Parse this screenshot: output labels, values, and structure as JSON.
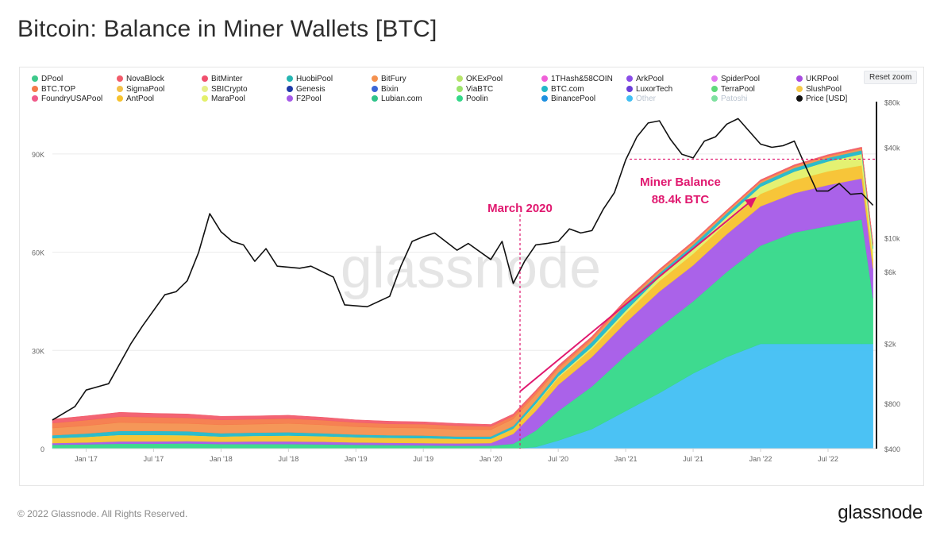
{
  "page": {
    "title": "Bitcoin: Balance in Miner Wallets [BTC]",
    "footer_copyright": "© 2022 Glassnode. All Rights Reserved.",
    "footer_logo": "glassnode",
    "watermark": "glassnode",
    "reset_zoom_label": "Reset zoom"
  },
  "legend": [
    {
      "label": "DPool",
      "color": "#3ec98b"
    },
    {
      "label": "NovaBlock",
      "color": "#f25c6b"
    },
    {
      "label": "BitMinter",
      "color": "#f0506e"
    },
    {
      "label": "HuobiPool",
      "color": "#26b5b2"
    },
    {
      "label": "BitFury",
      "color": "#f4914f"
    },
    {
      "label": "OKExPool",
      "color": "#b6e46a"
    },
    {
      "label": "1THash&58COIN",
      "color": "#f060d8"
    },
    {
      "label": "ArkPool",
      "color": "#8a4de8"
    },
    {
      "label": "SpiderPool",
      "color": "#e27af0"
    },
    {
      "label": "UKRPool",
      "color": "#a84be0"
    },
    {
      "label": "BTC.TOP",
      "color": "#f57a4a"
    },
    {
      "label": "SigmaPool",
      "color": "#f2c14a"
    },
    {
      "label": "SBICrypto",
      "color": "#e6ef8a"
    },
    {
      "label": "Genesis",
      "color": "#1f3aa8"
    },
    {
      "label": "Bixin",
      "color": "#3b66d6"
    },
    {
      "label": "ViaBTC",
      "color": "#9be36d"
    },
    {
      "label": "BTC.com",
      "color": "#22b8c8"
    },
    {
      "label": "LuxorTech",
      "color": "#6a3fd8"
    },
    {
      "label": "TerraPool",
      "color": "#5fd97a"
    },
    {
      "label": "SlushPool",
      "color": "#f6c94a"
    },
    {
      "label": "FoundryUSAPool",
      "color": "#f05a8a"
    },
    {
      "label": "AntPool",
      "color": "#f7c22e"
    },
    {
      "label": "MaraPool",
      "color": "#e3f06a"
    },
    {
      "label": "F2Pool",
      "color": "#a55ae8"
    },
    {
      "label": "Lubian.com",
      "color": "#2fc38a"
    },
    {
      "label": "Poolin",
      "color": "#34d889"
    },
    {
      "label": "BinancePool",
      "color": "#1e90e0"
    },
    {
      "label": "Other",
      "color": "#41bff3",
      "muted": true
    },
    {
      "label": "Patoshi",
      "color": "#7fe0a0",
      "muted": true
    },
    {
      "label": "Price [USD]",
      "color": "#111111"
    }
  ],
  "chart_data": {
    "type": "area",
    "title": "Bitcoin: Balance in Miner Wallets [BTC]",
    "x_ticks": [
      "Jan '17",
      "Jul '17",
      "Jan '18",
      "Jul '18",
      "Jan '19",
      "Jul '19",
      "Jan '20",
      "Jul '20",
      "Jan '21",
      "Jul '21",
      "Jan '22",
      "Jul '22"
    ],
    "y_left_ticks": [
      "0",
      "30K",
      "60K",
      "90K"
    ],
    "y_left_range": [
      0,
      105000
    ],
    "y_right_ticks": [
      "$400",
      "$800",
      "$2k",
      "$6k",
      "$10k",
      "$40k",
      "$80k"
    ],
    "y_right_scale": "log",
    "y_right_range": [
      400,
      80000
    ],
    "grid": true,
    "legend_position": "top",
    "stack_x": [
      "2016-10",
      "2017-01",
      "2017-04",
      "2017-07",
      "2017-10",
      "2018-01",
      "2018-04",
      "2018-07",
      "2018-10",
      "2019-01",
      "2019-04",
      "2019-07",
      "2019-10",
      "2020-01",
      "2020-03",
      "2020-05",
      "2020-07",
      "2020-10",
      "2021-01",
      "2021-04",
      "2021-07",
      "2021-10",
      "2022-01",
      "2022-04",
      "2022-07",
      "2022-10",
      "2022-11"
    ],
    "series": [
      {
        "name": "Other",
        "color": "#41bff3",
        "values": [
          0,
          0,
          0,
          0,
          0,
          0,
          0,
          0,
          0,
          0,
          0,
          0,
          0,
          0,
          0,
          500,
          2500,
          6000,
          11500,
          17000,
          23000,
          28000,
          32000,
          32000,
          32000,
          32000,
          32000
        ]
      },
      {
        "name": "Poolin",
        "color": "#34d889",
        "values": [
          1200,
          1300,
          1500,
          1500,
          1600,
          1400,
          1400,
          1400,
          1300,
          1200,
          1100,
          1000,
          900,
          900,
          1500,
          5000,
          9000,
          13000,
          17000,
          20000,
          22000,
          26000,
          30000,
          34000,
          36000,
          38000,
          14000
        ]
      },
      {
        "name": "F2Pool",
        "color": "#a55ae8",
        "values": [
          500,
          600,
          700,
          700,
          700,
          700,
          800,
          800,
          800,
          700,
          700,
          700,
          700,
          800,
          3000,
          6000,
          8000,
          9000,
          10000,
          11000,
          11000,
          11500,
          12000,
          12000,
          12500,
          12500,
          9000
        ]
      },
      {
        "name": "AntPool",
        "color": "#f7c22e",
        "values": [
          1500,
          1700,
          2000,
          2000,
          1800,
          1600,
          1700,
          1800,
          1700,
          1600,
          1500,
          1500,
          1400,
          1300,
          1600,
          2000,
          2200,
          2500,
          2800,
          3200,
          3500,
          3500,
          3800,
          4000,
          4200,
          4000,
          3000
        ]
      },
      {
        "name": "MaraPool",
        "color": "#e3f06a",
        "values": [
          0,
          0,
          0,
          0,
          0,
          0,
          0,
          0,
          0,
          0,
          0,
          0,
          0,
          0,
          0,
          200,
          400,
          600,
          800,
          1200,
          1500,
          1800,
          2200,
          2600,
          3000,
          3500,
          3000
        ]
      },
      {
        "name": "BTC.com",
        "color": "#22b8c8",
        "values": [
          900,
          1000,
          1200,
          1200,
          1200,
          1000,
          1000,
          1000,
          900,
          800,
          800,
          800,
          700,
          700,
          800,
          1000,
          1100,
          1500,
          2000,
          1200,
          1200,
          1100,
          1100,
          1100,
          1100,
          1100,
          900
        ]
      },
      {
        "name": "BitFury",
        "color": "#f4914f",
        "values": [
          2200,
          2400,
          2600,
          2400,
          2400,
          2600,
          2600,
          2700,
          2600,
          2400,
          2300,
          2300,
          2200,
          2100,
          2200,
          1800,
          1200,
          800,
          700,
          600,
          600,
          500,
          500,
          500,
          500,
          500,
          500
        ]
      },
      {
        "name": "BTC.TOP",
        "color": "#f57a4a",
        "values": [
          1500,
          1700,
          1800,
          1800,
          1700,
          1500,
          1500,
          1500,
          1400,
          1300,
          1200,
          1200,
          1100,
          1000,
          900,
          800,
          600,
          500,
          400,
          300,
          300,
          200,
          200,
          200,
          200,
          200,
          200
        ]
      },
      {
        "name": "NovaBlock",
        "color": "#f25c6b",
        "values": [
          1200,
          1300,
          1300,
          1200,
          1200,
          1100,
          1000,
          1000,
          900,
          800,
          800,
          700,
          700,
          600,
          600,
          500,
          400,
          400,
          300,
          300,
          300,
          300,
          300,
          300,
          300,
          300,
          300
        ]
      }
    ],
    "price_series": {
      "name": "Price [USD]",
      "x": [
        "2016-10",
        "2016-12",
        "2017-01",
        "2017-03",
        "2017-05",
        "2017-06",
        "2017-08",
        "2017-09",
        "2017-10",
        "2017-11",
        "2017-12",
        "2018-01",
        "2018-02",
        "2018-03",
        "2018-04",
        "2018-05",
        "2018-06",
        "2018-08",
        "2018-09",
        "2018-11",
        "2018-12",
        "2019-02",
        "2019-04",
        "2019-05",
        "2019-06",
        "2019-07",
        "2019-08",
        "2019-10",
        "2019-11",
        "2020-01",
        "2020-02",
        "2020-03",
        "2020-04",
        "2020-05",
        "2020-06",
        "2020-07",
        "2020-08",
        "2020-09",
        "2020-10",
        "2020-11",
        "2020-12",
        "2021-01",
        "2021-02",
        "2021-03",
        "2021-04",
        "2021-05",
        "2021-06",
        "2021-07",
        "2021-08",
        "2021-09",
        "2021-10",
        "2021-11",
        "2021-12",
        "2022-01",
        "2022-02",
        "2022-03",
        "2022-04",
        "2022-05",
        "2022-06",
        "2022-07",
        "2022-08",
        "2022-09",
        "2022-10",
        "2022-11"
      ],
      "values": [
        620,
        760,
        980,
        1080,
        2000,
        2600,
        4200,
        4400,
        5200,
        8000,
        14500,
        11000,
        9500,
        9000,
        7000,
        8500,
        6500,
        6300,
        6500,
        5500,
        3600,
        3500,
        4100,
        6500,
        9500,
        10200,
        10800,
        8300,
        9200,
        7200,
        9500,
        5000,
        7000,
        9000,
        9200,
        9500,
        11500,
        10800,
        11200,
        15500,
        20000,
        33000,
        47000,
        58000,
        60000,
        45000,
        36000,
        34000,
        44000,
        47000,
        57000,
        62000,
        51000,
        42000,
        40000,
        41000,
        44000,
        30000,
        20500,
        20500,
        23000,
        19500,
        19800,
        16500
      ]
    },
    "annotations": [
      {
        "text": "March 2020",
        "x": "2020-03"
      },
      {
        "text": "Miner Balance",
        "x": "2021-01",
        "y": 88400
      },
      {
        "text": "88.4k BTC",
        "x": "2021-01",
        "y": 88400
      }
    ]
  }
}
